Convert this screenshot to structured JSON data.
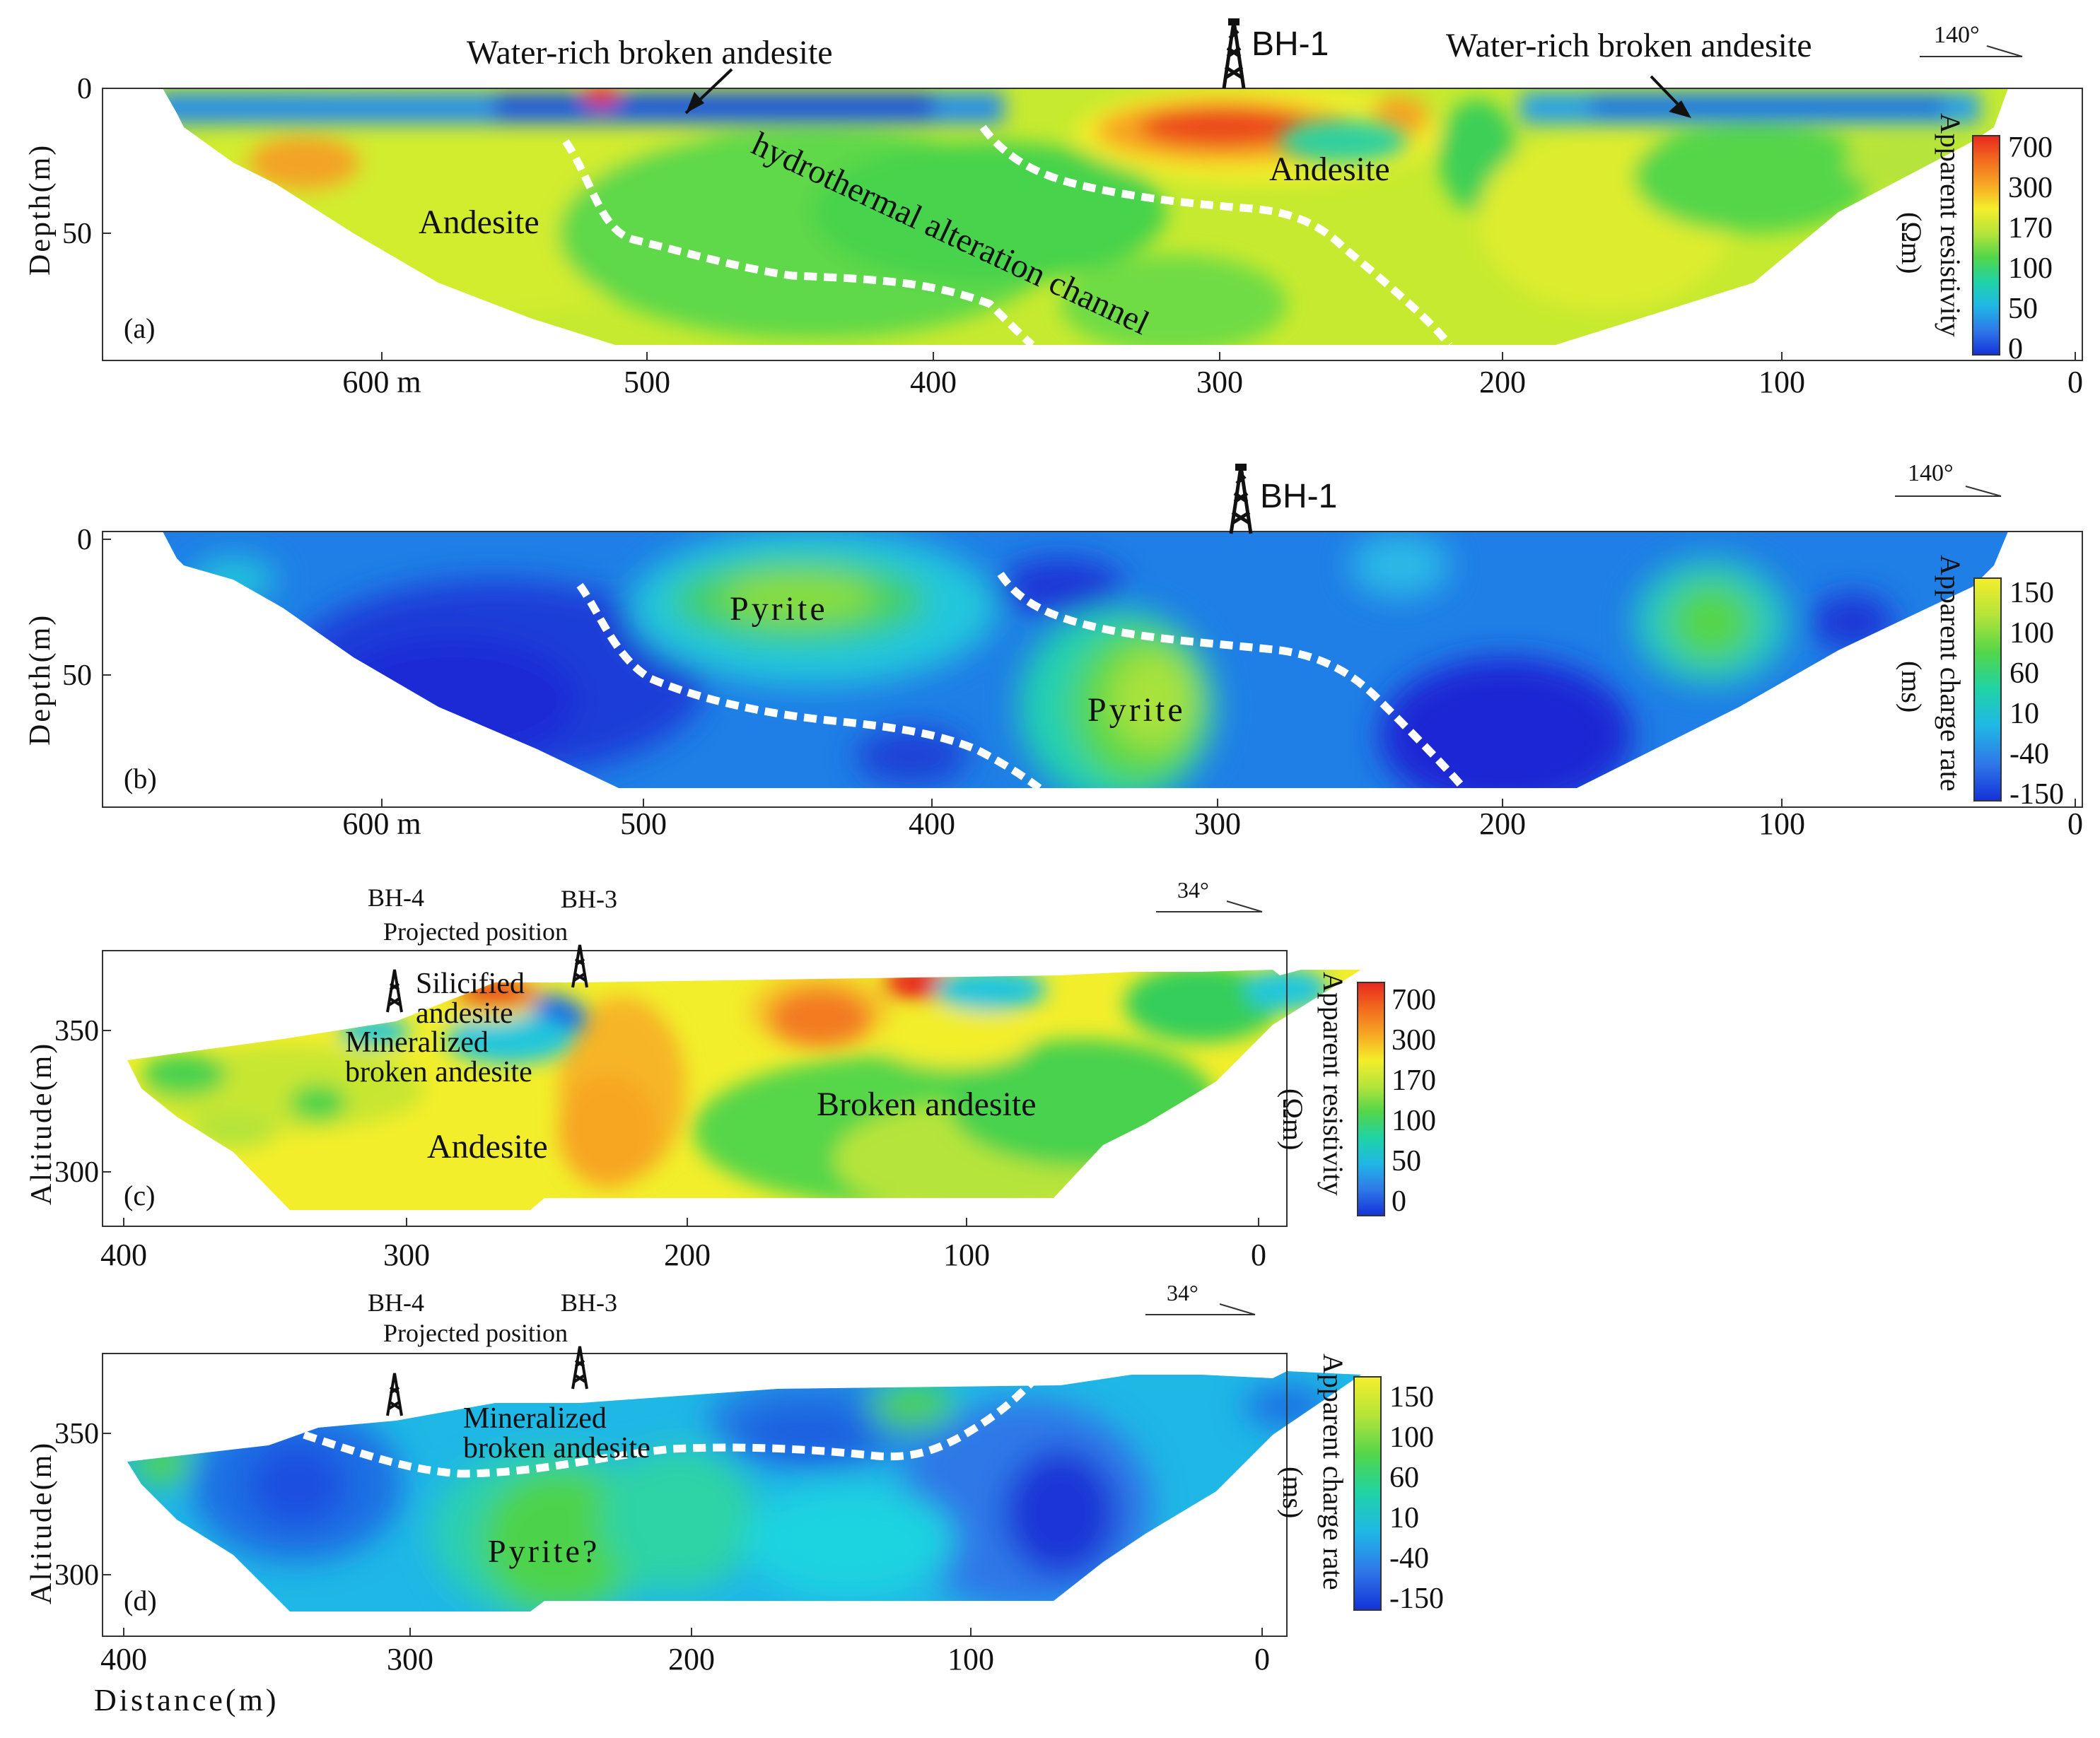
{
  "panels": [
    {
      "id": "a",
      "panel_label": "(a)",
      "axis_label": "Depth(m)",
      "y_ticks": [
        "0",
        "50"
      ],
      "x_ticks": [
        "600 m",
        "500",
        "400",
        "300",
        "200",
        "100",
        "0"
      ],
      "azimuth": "140°",
      "borehole": "BH-1",
      "annotations": [
        "Water-rich broken andesite",
        "Water-rich broken andesite",
        "hydrothermal alteration channel",
        "Andesite",
        "Andesite"
      ],
      "colorbar": {
        "title": "Apparent resistivity",
        "unit": "(Ωm)",
        "ticks": [
          "700",
          "300",
          "170",
          "100",
          "50",
          "0"
        ],
        "colors": [
          "#e8281e",
          "#f26a1f",
          "#f7a623",
          "#f4ee2b",
          "#b5e43a",
          "#52d64a",
          "#1fd3a6",
          "#1fb7e6",
          "#2f78e8",
          "#1432d8"
        ]
      }
    },
    {
      "id": "b",
      "panel_label": "(b)",
      "axis_label": "Depth(m)",
      "y_ticks": [
        "0",
        "50"
      ],
      "x_ticks": [
        "600 m",
        "500",
        "400",
        "300",
        "200",
        "100",
        "0"
      ],
      "azimuth": "140°",
      "borehole": "BH-1",
      "annotations": [
        "Pyrite",
        "Pyrite"
      ],
      "colorbar": {
        "title": "Apparent charge rate",
        "unit": "(ms)",
        "ticks": [
          "150",
          "100",
          "60",
          "10",
          "-40",
          "-150"
        ],
        "colors": [
          "#f4ee2b",
          "#b5e43a",
          "#52d64a",
          "#1fd3a6",
          "#1fb7e6",
          "#2f78e8",
          "#1432d8"
        ]
      }
    },
    {
      "id": "c",
      "panel_label": "(c)",
      "axis_label": "Altitude(m)",
      "y_ticks": [
        "350",
        "300"
      ],
      "x_ticks": [
        "400",
        "300",
        "200",
        "100",
        "0"
      ],
      "azimuth": "34°",
      "boreholes": [
        "BH-4",
        "BH-3"
      ],
      "projected": "Projected position",
      "annotations": [
        "Silicified andesite",
        "Mineralized broken andesite",
        "Andesite",
        "Broken andesite"
      ],
      "colorbar": {
        "title": "Apparent resistivity",
        "unit": "(Ωm)",
        "ticks": [
          "700",
          "300",
          "170",
          "100",
          "50",
          "0"
        ],
        "colors": [
          "#e8281e",
          "#f26a1f",
          "#f7a623",
          "#f4ee2b",
          "#b5e43a",
          "#52d64a",
          "#1fd3a6",
          "#1fb7e6",
          "#2f78e8",
          "#1432d8"
        ]
      }
    },
    {
      "id": "d",
      "panel_label": "(d)",
      "axis_label": "Altitude(m)",
      "y_ticks": [
        "350",
        "300"
      ],
      "x_ticks": [
        "400",
        "300",
        "200",
        "100",
        "0"
      ],
      "x_axis_title": "Distance(m)",
      "azimuth": "34°",
      "boreholes": [
        "BH-4",
        "BH-3"
      ],
      "projected": "Projected position",
      "annotations": [
        "Mineralized broken andesite",
        "Pyrite?"
      ],
      "colorbar": {
        "title": "Apparent charge rate",
        "unit": "(ms)",
        "ticks": [
          "150",
          "100",
          "60",
          "10",
          "-40",
          "-150"
        ],
        "colors": [
          "#f4ee2b",
          "#b5e43a",
          "#52d64a",
          "#1fd3a6",
          "#1fb7e6",
          "#2f78e8",
          "#1432d8"
        ]
      }
    }
  ]
}
